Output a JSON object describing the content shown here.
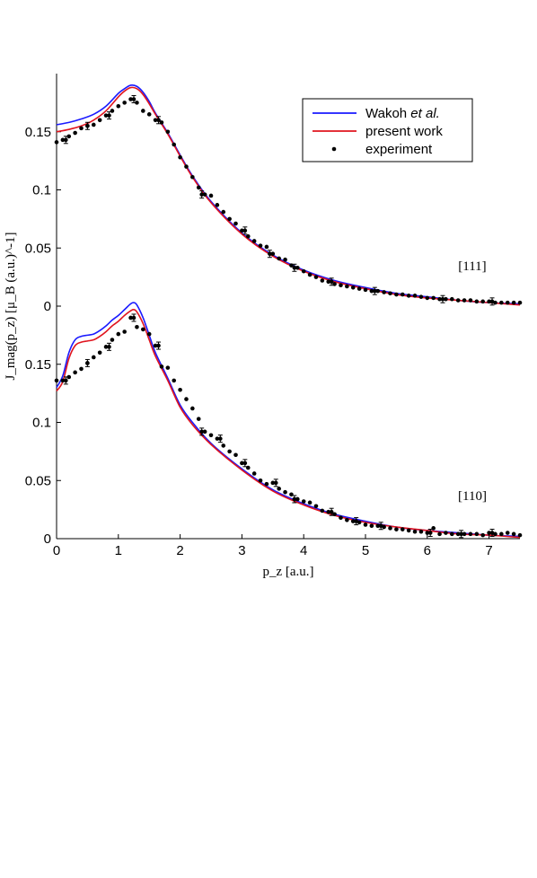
{
  "chart_data": {
    "type": "line",
    "xlabel": "p_z [a.u.]",
    "ylabel": "J_mag(p_z) [μ_B (a.u.)^-1]",
    "xlim": [
      0,
      7.5
    ],
    "x_ticks": [
      "0",
      "1",
      "2",
      "3",
      "4",
      "5",
      "6",
      "7"
    ],
    "grid": false,
    "legend": {
      "placement": "top-right",
      "entries": [
        {
          "label_plain": "Wakoh ",
          "label_italic": "et al.",
          "color": "#1a1aff",
          "style": "line"
        },
        {
          "label_plain": "present work",
          "label_italic": "",
          "color": "#e0141e",
          "style": "line"
        },
        {
          "label_plain": "experiment",
          "label_italic": "",
          "color": "#000000",
          "style": "dot"
        }
      ]
    },
    "panels": [
      {
        "name": "[111]",
        "ylim": [
          0,
          0.2
        ],
        "y_ticks": [
          {
            "value": 0,
            "label": "0"
          },
          {
            "value": 0.05,
            "label": "0.05"
          },
          {
            "value": 0.1,
            "label": "0.1"
          },
          {
            "value": 0.15,
            "label": "0.15"
          }
        ],
        "series": [
          {
            "name": "Wakoh et al.",
            "color": "#1a1aff",
            "x": [
              0,
              0.2,
              0.4,
              0.6,
              0.8,
              1.0,
              1.1,
              1.2,
              1.3,
              1.4,
              1.5,
              1.6,
              1.8,
              2.0,
              2.2,
              2.5,
              3.0,
              3.5,
              4.0,
              4.5,
              5.0,
              5.5,
              6.0,
              6.5,
              7.0,
              7.5
            ],
            "y": [
              0.156,
              0.158,
              0.161,
              0.165,
              0.172,
              0.183,
              0.187,
              0.19,
              0.189,
              0.184,
              0.176,
              0.166,
              0.149,
              0.13,
              0.112,
              0.09,
              0.063,
              0.044,
              0.031,
              0.022,
              0.016,
              0.011,
              0.008,
              0.005,
              0.003,
              0.002
            ]
          },
          {
            "name": "present work",
            "color": "#e0141e",
            "x": [
              0,
              0.2,
              0.4,
              0.6,
              0.8,
              1.0,
              1.1,
              1.2,
              1.3,
              1.4,
              1.5,
              1.6,
              1.8,
              2.0,
              2.2,
              2.5,
              3.0,
              3.5,
              4.0,
              4.5,
              5.0,
              5.5,
              6.0,
              6.5,
              7.0,
              7.5
            ],
            "y": [
              0.15,
              0.152,
              0.155,
              0.16,
              0.168,
              0.18,
              0.185,
              0.188,
              0.187,
              0.182,
              0.174,
              0.165,
              0.148,
              0.129,
              0.111,
              0.089,
              0.062,
              0.043,
              0.03,
              0.021,
              0.015,
              0.01,
              0.007,
              0.005,
              0.003,
              0.001
            ]
          },
          {
            "name": "experiment",
            "color": "#000000",
            "x": [
              0.0,
              0.1,
              0.2,
              0.3,
              0.4,
              0.5,
              0.6,
              0.7,
              0.8,
              0.9,
              1.0,
              1.1,
              1.2,
              1.3,
              1.4,
              1.5,
              1.6,
              1.7,
              1.8,
              1.9,
              2.0,
              2.1,
              2.2,
              2.3,
              2.4,
              2.5,
              2.6,
              2.7,
              2.8,
              2.9,
              3.0,
              3.1,
              3.2,
              3.3,
              3.4,
              3.5,
              3.6,
              3.7,
              3.8,
              3.9,
              4.0,
              4.1,
              4.2,
              4.3,
              4.4,
              4.5,
              4.6,
              4.7,
              4.8,
              4.9,
              5.0,
              5.1,
              5.2,
              5.3,
              5.4,
              5.5,
              5.6,
              5.7,
              5.8,
              5.9,
              6.0,
              6.1,
              6.2,
              6.3,
              6.4,
              6.5,
              6.6,
              6.7,
              6.8,
              6.9,
              7.0,
              7.1,
              7.2,
              7.3,
              7.4,
              7.5
            ],
            "y": [
              0.141,
              0.143,
              0.146,
              0.149,
              0.153,
              0.155,
              0.156,
              0.16,
              0.164,
              0.168,
              0.172,
              0.175,
              0.178,
              0.175,
              0.168,
              0.165,
              0.16,
              0.158,
              0.15,
              0.139,
              0.128,
              0.12,
              0.111,
              0.102,
              0.096,
              0.095,
              0.087,
              0.081,
              0.075,
              0.071,
              0.065,
              0.06,
              0.056,
              0.052,
              0.051,
              0.045,
              0.041,
              0.04,
              0.035,
              0.033,
              0.03,
              0.027,
              0.025,
              0.022,
              0.021,
              0.019,
              0.018,
              0.017,
              0.016,
              0.015,
              0.014,
              0.013,
              0.013,
              0.012,
              0.011,
              0.01,
              0.01,
              0.009,
              0.009,
              0.008,
              0.007,
              0.007,
              0.006,
              0.006,
              0.006,
              0.005,
              0.005,
              0.005,
              0.004,
              0.004,
              0.004,
              0.003,
              0.003,
              0.003,
              0.003,
              0.003
            ],
            "error_bars_at": [
              0.15,
              0.5,
              0.85,
              1.25,
              1.65,
              2.35,
              3.05,
              3.45,
              3.85,
              4.45,
              5.15,
              6.25,
              7.05
            ]
          }
        ]
      },
      {
        "name": "[110]",
        "ylim": [
          0,
          0.2
        ],
        "y_ticks": [
          {
            "value": 0,
            "label": "0"
          },
          {
            "value": 0.05,
            "label": "0.05"
          },
          {
            "value": 0.1,
            "label": "0.1"
          },
          {
            "value": 0.15,
            "label": "0.15"
          }
        ],
        "series": [
          {
            "name": "Wakoh et al.",
            "color": "#1a1aff",
            "x": [
              0,
              0.1,
              0.2,
              0.3,
              0.4,
              0.5,
              0.6,
              0.7,
              0.8,
              0.9,
              1.0,
              1.1,
              1.2,
              1.25,
              1.3,
              1.4,
              1.5,
              1.6,
              1.8,
              2.0,
              2.2,
              2.5,
              3.0,
              3.5,
              4.0,
              4.5,
              5.0,
              5.5,
              6.0,
              6.5,
              7.0,
              7.5
            ],
            "y": [
              0.13,
              0.14,
              0.16,
              0.171,
              0.174,
              0.175,
              0.176,
              0.179,
              0.183,
              0.188,
              0.192,
              0.197,
              0.202,
              0.203,
              0.201,
              0.19,
              0.175,
              0.16,
              0.138,
              0.115,
              0.1,
              0.082,
              0.06,
              0.042,
              0.03,
              0.021,
              0.015,
              0.01,
              0.007,
              0.005,
              0.003,
              0.002
            ]
          },
          {
            "name": "present work",
            "color": "#e0141e",
            "x": [
              0,
              0.1,
              0.2,
              0.3,
              0.4,
              0.5,
              0.6,
              0.7,
              0.8,
              0.9,
              1.0,
              1.1,
              1.2,
              1.25,
              1.3,
              1.4,
              1.5,
              1.6,
              1.8,
              2.0,
              2.2,
              2.5,
              3.0,
              3.5,
              4.0,
              4.5,
              5.0,
              5.5,
              6.0,
              6.5,
              7.0,
              7.5
            ],
            "y": [
              0.127,
              0.135,
              0.155,
              0.166,
              0.169,
              0.17,
              0.171,
              0.174,
              0.178,
              0.183,
              0.187,
              0.192,
              0.196,
              0.197,
              0.195,
              0.185,
              0.171,
              0.157,
              0.136,
              0.113,
              0.098,
              0.081,
              0.059,
              0.041,
              0.029,
              0.02,
              0.014,
              0.01,
              0.007,
              0.004,
              0.003,
              0.001
            ]
          },
          {
            "name": "experiment",
            "color": "#000000",
            "x": [
              0.0,
              0.1,
              0.2,
              0.3,
              0.4,
              0.5,
              0.6,
              0.7,
              0.8,
              0.9,
              1.0,
              1.1,
              1.2,
              1.3,
              1.4,
              1.5,
              1.6,
              1.7,
              1.8,
              1.9,
              2.0,
              2.1,
              2.2,
              2.3,
              2.4,
              2.5,
              2.6,
              2.7,
              2.8,
              2.9,
              3.0,
              3.1,
              3.2,
              3.3,
              3.4,
              3.5,
              3.6,
              3.7,
              3.8,
              3.9,
              4.0,
              4.1,
              4.2,
              4.3,
              4.4,
              4.5,
              4.6,
              4.7,
              4.8,
              4.9,
              5.0,
              5.1,
              5.2,
              5.3,
              5.4,
              5.5,
              5.6,
              5.7,
              5.8,
              5.9,
              6.0,
              6.1,
              6.2,
              6.3,
              6.4,
              6.5,
              6.6,
              6.7,
              6.8,
              6.9,
              7.0,
              7.1,
              7.2,
              7.3,
              7.4,
              7.5
            ],
            "y": [
              0.136,
              0.136,
              0.139,
              0.143,
              0.146,
              0.151,
              0.156,
              0.16,
              0.165,
              0.171,
              0.176,
              0.178,
              0.19,
              0.182,
              0.18,
              0.176,
              0.166,
              0.148,
              0.147,
              0.136,
              0.128,
              0.12,
              0.112,
              0.103,
              0.092,
              0.089,
              0.086,
              0.08,
              0.075,
              0.072,
              0.065,
              0.061,
              0.056,
              0.05,
              0.047,
              0.048,
              0.043,
              0.04,
              0.038,
              0.034,
              0.032,
              0.031,
              0.028,
              0.024,
              0.023,
              0.021,
              0.018,
              0.016,
              0.015,
              0.014,
              0.012,
              0.011,
              0.011,
              0.01,
              0.009,
              0.008,
              0.008,
              0.007,
              0.006,
              0.006,
              0.005,
              0.009,
              0.004,
              0.005,
              0.004,
              0.004,
              0.004,
              0.004,
              0.004,
              0.003,
              0.005,
              0.004,
              0.004,
              0.005,
              0.004,
              0.003
            ],
            "error_bars_at": [
              0.15,
              0.5,
              0.85,
              1.25,
              1.65,
              2.35,
              2.65,
              3.05,
              3.55,
              3.85,
              4.45,
              4.85,
              5.25,
              6.05,
              6.55,
              7.05
            ]
          }
        ]
      }
    ]
  }
}
